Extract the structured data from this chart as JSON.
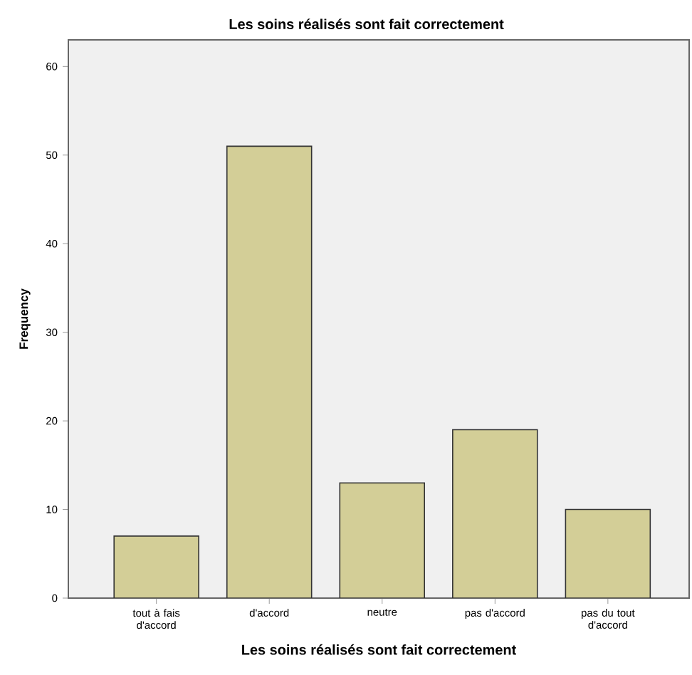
{
  "chart_data": {
    "type": "bar",
    "title": "Les soins réalisés sont fait correctement",
    "xlabel": "Les soins réalisés sont fait correctement",
    "ylabel": "Frequency",
    "categories": [
      "tout à fais d'accord",
      "d'accord",
      "neutre",
      "pas d'accord",
      "pas du tout d'accord"
    ],
    "values": [
      7,
      51,
      13,
      19,
      10
    ],
    "color": "#d3ce97",
    "ylim": [
      0,
      63
    ],
    "yticks": [
      0,
      10,
      20,
      30,
      40,
      50,
      60
    ],
    "grid": false
  }
}
